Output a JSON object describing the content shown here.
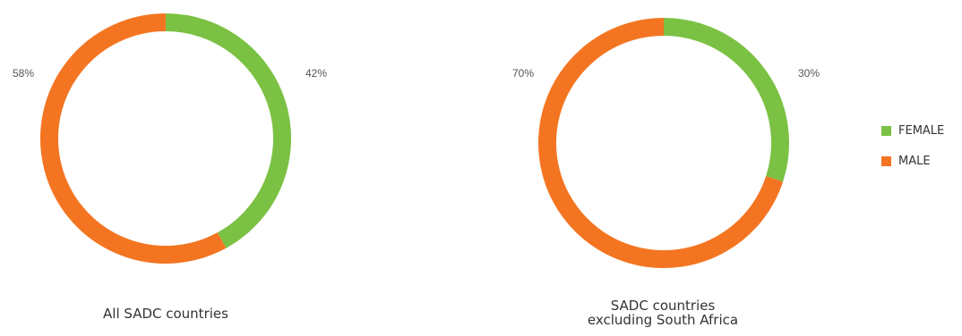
{
  "colors": {
    "female": "#7bc143",
    "male": "#f47521"
  },
  "legend": [
    {
      "label": "FEMALE",
      "color": "#7bc143"
    },
    {
      "label": "MALE",
      "color": "#f47521"
    }
  ],
  "chart_data": [
    {
      "type": "pie",
      "style": "donut",
      "title": "All SADC countries",
      "categories": [
        "FEMALE",
        "MALE"
      ],
      "values": [
        42,
        58
      ],
      "labels": [
        "42%",
        "58%"
      ]
    },
    {
      "type": "pie",
      "style": "donut",
      "title": [
        "SADC countries",
        "excluding South Africa"
      ],
      "categories": [
        "FEMALE",
        "MALE"
      ],
      "values": [
        30,
        70
      ],
      "labels": [
        "30%",
        "70%"
      ]
    }
  ]
}
